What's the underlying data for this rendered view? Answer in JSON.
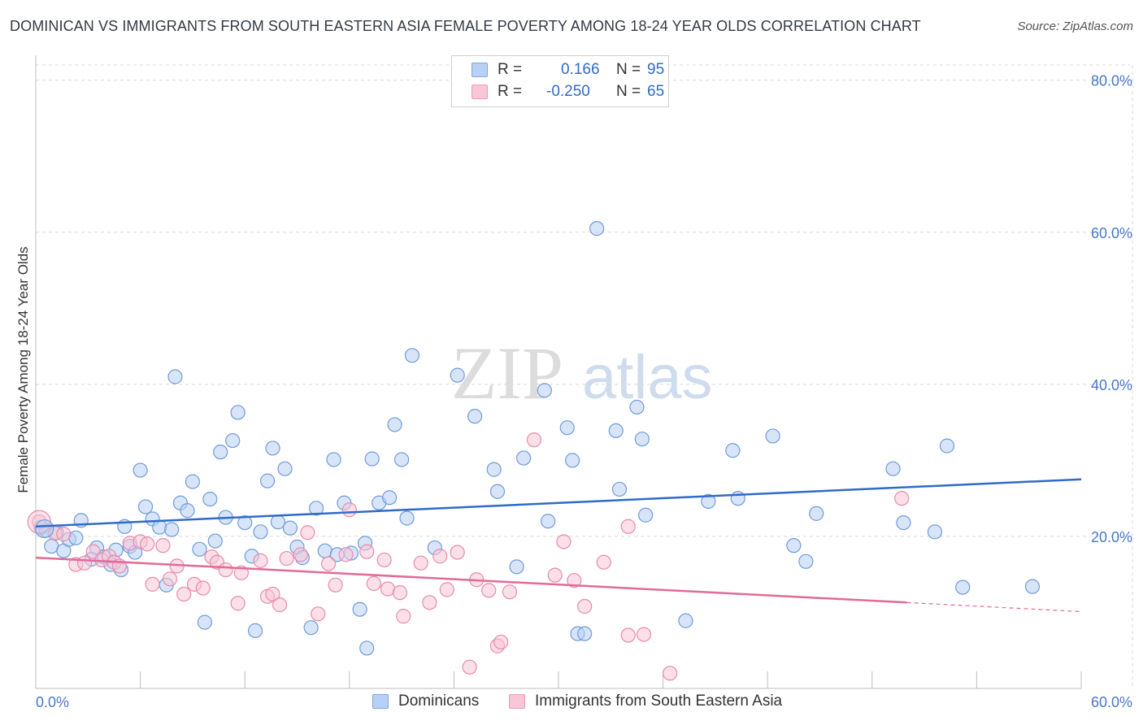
{
  "title": "DOMINICAN VS IMMIGRANTS FROM SOUTH EASTERN ASIA FEMALE POVERTY AMONG 18-24 YEAR OLDS CORRELATION CHART",
  "source": "Source: ZipAtlas.com",
  "watermark": {
    "zip": "ZIP",
    "atlas": "atlas"
  },
  "legend": {
    "r_label": "R =",
    "n_label": "N =",
    "rows": [
      {
        "r": "0.166",
        "n": "95",
        "fill": "#b8d0f4",
        "stroke": "#7fa6e0"
      },
      {
        "r": "-0.250",
        "n": "65",
        "fill": "#f8c6d6",
        "stroke": "#eb9ab6"
      }
    ]
  },
  "bottom_legend": [
    "Dominicans",
    "Immigrants from South Eastern Asia"
  ],
  "chart_data": {
    "type": "scatter",
    "title": "DOMINICAN VS IMMIGRANTS FROM SOUTH EASTERN ASIA FEMALE POVERTY AMONG 18-24 YEAR OLDS CORRELATION CHART",
    "xlabel": "",
    "ylabel": "Female Poverty Among 18-24 Year Olds",
    "xlim": [
      0,
      60
    ],
    "ylim": [
      0,
      80
    ],
    "x_tick_labels": [
      "0.0%",
      "60.0%"
    ],
    "y_tick_labels": [
      "20.0%",
      "40.0%",
      "60.0%",
      "80.0%"
    ],
    "y_ticks": [
      20,
      40,
      60,
      80
    ],
    "grid": true,
    "series": [
      {
        "name": "Dominicans",
        "color": "#6f9bdc",
        "fill": "#b8d0f4",
        "trend": {
          "x": [
            0,
            60
          ],
          "y": [
            21.3,
            27.5
          ],
          "color": "#2f6bc9"
        },
        "points": [
          [
            0.3,
            21.2
          ],
          [
            0.6,
            20.8
          ],
          [
            0.9,
            18.7
          ],
          [
            1.2,
            20.5
          ],
          [
            1.6,
            18.1
          ],
          [
            1.9,
            19.6
          ],
          [
            2.3,
            19.8
          ],
          [
            2.6,
            22.1
          ],
          [
            3.2,
            17.0
          ],
          [
            3.5,
            18.5
          ],
          [
            3.9,
            17.3
          ],
          [
            4.3,
            16.3
          ],
          [
            4.6,
            18.2
          ],
          [
            4.9,
            15.6
          ],
          [
            5.1,
            21.3
          ],
          [
            5.4,
            18.7
          ],
          [
            5.7,
            17.9
          ],
          [
            6.0,
            28.7
          ],
          [
            6.3,
            23.9
          ],
          [
            6.7,
            22.3
          ],
          [
            7.1,
            21.2
          ],
          [
            7.5,
            13.6
          ],
          [
            7.8,
            20.9
          ],
          [
            8.0,
            41.0
          ],
          [
            8.3,
            24.4
          ],
          [
            8.7,
            23.4
          ],
          [
            9.0,
            27.2
          ],
          [
            9.4,
            18.3
          ],
          [
            9.7,
            8.7
          ],
          [
            10.0,
            24.9
          ],
          [
            10.3,
            19.4
          ],
          [
            10.6,
            31.1
          ],
          [
            10.9,
            22.5
          ],
          [
            11.3,
            32.6
          ],
          [
            11.6,
            36.3
          ],
          [
            12.0,
            21.8
          ],
          [
            12.4,
            17.4
          ],
          [
            12.6,
            7.6
          ],
          [
            12.9,
            20.6
          ],
          [
            13.3,
            27.3
          ],
          [
            13.6,
            31.6
          ],
          [
            13.9,
            21.9
          ],
          [
            14.3,
            28.9
          ],
          [
            14.6,
            21.1
          ],
          [
            15.0,
            18.6
          ],
          [
            15.3,
            17.2
          ],
          [
            15.8,
            8.0
          ],
          [
            16.1,
            23.7
          ],
          [
            16.6,
            18.1
          ],
          [
            17.1,
            30.1
          ],
          [
            17.3,
            17.6
          ],
          [
            17.7,
            24.4
          ],
          [
            18.1,
            17.8
          ],
          [
            18.6,
            10.4
          ],
          [
            18.9,
            19.1
          ],
          [
            19.0,
            5.3
          ],
          [
            19.3,
            30.2
          ],
          [
            19.7,
            24.4
          ],
          [
            20.3,
            25.1
          ],
          [
            20.6,
            34.7
          ],
          [
            21.0,
            30.1
          ],
          [
            21.3,
            22.4
          ],
          [
            21.6,
            43.8
          ],
          [
            22.9,
            18.5
          ],
          [
            24.2,
            41.2
          ],
          [
            25.2,
            35.8
          ],
          [
            26.3,
            28.8
          ],
          [
            26.5,
            25.9
          ],
          [
            27.6,
            16.0
          ],
          [
            28.0,
            30.3
          ],
          [
            29.2,
            39.2
          ],
          [
            29.4,
            22.0
          ],
          [
            30.5,
            34.3
          ],
          [
            30.8,
            30.0
          ],
          [
            31.1,
            7.2
          ],
          [
            31.5,
            7.2
          ],
          [
            32.2,
            60.5
          ],
          [
            33.3,
            33.9
          ],
          [
            33.5,
            26.2
          ],
          [
            34.5,
            37.0
          ],
          [
            34.8,
            32.8
          ],
          [
            35.0,
            22.8
          ],
          [
            37.3,
            8.9
          ],
          [
            38.6,
            24.6
          ],
          [
            40.0,
            31.3
          ],
          [
            40.3,
            25.0
          ],
          [
            42.3,
            33.2
          ],
          [
            43.5,
            18.8
          ],
          [
            44.2,
            16.7
          ],
          [
            44.8,
            23.0
          ],
          [
            49.2,
            28.9
          ],
          [
            49.8,
            21.8
          ],
          [
            51.6,
            20.6
          ],
          [
            52.3,
            31.9
          ],
          [
            53.2,
            13.3
          ],
          [
            57.2,
            13.4
          ]
        ]
      },
      {
        "name": "Immigrants from South Eastern Asia",
        "color": "#e88aac",
        "fill": "#f8c6d6",
        "trend": {
          "x": [
            0,
            50
          ],
          "y": [
            17.2,
            11.3
          ],
          "color": "#e26a98",
          "dashed_extension": {
            "x": [
              50,
              60
            ],
            "y": [
              11.3,
              10.1
            ]
          }
        },
        "points": [
          [
            0.2,
            21.9
          ],
          [
            1.1,
            20.4
          ],
          [
            1.6,
            20.3
          ],
          [
            2.3,
            16.3
          ],
          [
            2.8,
            16.5
          ],
          [
            3.3,
            18.0
          ],
          [
            3.8,
            16.9
          ],
          [
            4.2,
            17.4
          ],
          [
            4.5,
            16.6
          ],
          [
            4.8,
            16.1
          ],
          [
            5.4,
            19.1
          ],
          [
            6.0,
            19.3
          ],
          [
            6.4,
            19.0
          ],
          [
            6.7,
            13.7
          ],
          [
            7.3,
            18.8
          ],
          [
            7.7,
            14.4
          ],
          [
            8.1,
            16.1
          ],
          [
            8.5,
            12.4
          ],
          [
            9.1,
            13.7
          ],
          [
            9.6,
            13.2
          ],
          [
            10.1,
            17.3
          ],
          [
            10.4,
            16.6
          ],
          [
            10.9,
            15.6
          ],
          [
            11.6,
            11.2
          ],
          [
            11.8,
            15.2
          ],
          [
            12.9,
            16.8
          ],
          [
            13.3,
            12.1
          ],
          [
            13.6,
            12.4
          ],
          [
            14.0,
            11.0
          ],
          [
            14.4,
            17.1
          ],
          [
            15.2,
            17.6
          ],
          [
            15.6,
            20.5
          ],
          [
            16.2,
            9.8
          ],
          [
            16.8,
            16.4
          ],
          [
            17.2,
            13.6
          ],
          [
            17.8,
            17.6
          ],
          [
            18.0,
            23.5
          ],
          [
            19.0,
            18.0
          ],
          [
            19.4,
            13.8
          ],
          [
            20.0,
            16.9
          ],
          [
            20.2,
            13.1
          ],
          [
            20.9,
            12.6
          ],
          [
            21.1,
            9.5
          ],
          [
            22.1,
            16.5
          ],
          [
            22.6,
            11.3
          ],
          [
            23.2,
            17.4
          ],
          [
            23.6,
            13.0
          ],
          [
            24.2,
            17.9
          ],
          [
            24.9,
            2.8
          ],
          [
            25.3,
            14.3
          ],
          [
            26.0,
            12.9
          ],
          [
            26.5,
            5.6
          ],
          [
            26.7,
            6.1
          ],
          [
            27.2,
            12.7
          ],
          [
            28.6,
            32.7
          ],
          [
            29.8,
            14.9
          ],
          [
            30.3,
            19.3
          ],
          [
            30.9,
            14.2
          ],
          [
            31.5,
            10.8
          ],
          [
            32.6,
            16.6
          ],
          [
            34.0,
            21.3
          ],
          [
            34.0,
            7.0
          ],
          [
            34.9,
            7.1
          ],
          [
            36.4,
            2.0
          ],
          [
            49.7,
            25.0
          ]
        ]
      }
    ]
  }
}
